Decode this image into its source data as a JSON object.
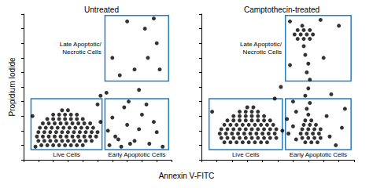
{
  "chart_data": {
    "type": "scatter",
    "xlabel": "Annexin V-FITC",
    "ylabel": "Propidium Iodide",
    "panels": [
      {
        "title": "Untreated",
        "xlim": [
          0,
          100
        ],
        "ylim": [
          0,
          100
        ],
        "xticks": [
          0,
          10,
          20,
          30,
          40,
          50,
          60,
          70,
          80,
          90,
          100
        ],
        "yticks": [
          0,
          10,
          20,
          30,
          40,
          50,
          60,
          70,
          80,
          90,
          100
        ],
        "tick_labels": false,
        "grid": false,
        "color": "#000000",
        "points": [
          [
            12,
            10
          ],
          [
            16,
            10
          ],
          [
            20,
            10
          ],
          [
            24,
            10
          ],
          [
            28,
            10
          ],
          [
            32,
            10
          ],
          [
            36,
            10
          ],
          [
            40,
            10
          ],
          [
            10,
            13
          ],
          [
            14,
            13
          ],
          [
            18,
            13
          ],
          [
            22,
            13
          ],
          [
            26,
            13
          ],
          [
            30,
            13
          ],
          [
            34,
            13
          ],
          [
            38,
            13
          ],
          [
            42,
            13
          ],
          [
            46,
            13
          ],
          [
            9,
            16
          ],
          [
            13,
            16
          ],
          [
            17,
            16
          ],
          [
            21,
            16
          ],
          [
            25,
            16
          ],
          [
            29,
            16
          ],
          [
            33,
            16
          ],
          [
            37,
            16
          ],
          [
            41,
            16
          ],
          [
            45,
            16
          ],
          [
            49,
            16
          ],
          [
            10,
            19
          ],
          [
            14,
            19
          ],
          [
            18,
            19
          ],
          [
            22,
            19
          ],
          [
            26,
            19
          ],
          [
            30,
            19
          ],
          [
            34,
            19
          ],
          [
            38,
            19
          ],
          [
            42,
            19
          ],
          [
            46,
            19
          ],
          [
            50,
            19
          ],
          [
            11,
            22
          ],
          [
            15,
            22
          ],
          [
            19,
            22
          ],
          [
            23,
            22
          ],
          [
            27,
            22
          ],
          [
            31,
            22
          ],
          [
            35,
            22
          ],
          [
            39,
            22
          ],
          [
            43,
            22
          ],
          [
            47,
            22
          ],
          [
            13,
            25
          ],
          [
            17,
            25
          ],
          [
            21,
            25
          ],
          [
            25,
            25
          ],
          [
            29,
            25
          ],
          [
            33,
            25
          ],
          [
            37,
            25
          ],
          [
            41,
            25
          ],
          [
            45,
            25
          ],
          [
            16,
            28
          ],
          [
            20,
            28
          ],
          [
            24,
            28
          ],
          [
            28,
            28
          ],
          [
            32,
            28
          ],
          [
            36,
            28
          ],
          [
            40,
            28
          ],
          [
            20,
            31
          ],
          [
            24,
            31
          ],
          [
            28,
            31
          ],
          [
            32,
            31
          ],
          [
            36,
            31
          ],
          [
            26,
            34
          ],
          [
            30,
            34
          ],
          [
            58,
            10
          ],
          [
            62,
            16
          ],
          [
            66,
            9
          ],
          [
            70,
            24
          ],
          [
            75,
            13
          ],
          [
            80,
            31
          ],
          [
            85,
            11
          ],
          [
            90,
            19
          ],
          [
            60,
            29
          ],
          [
            68,
            36
          ],
          [
            72,
            11
          ],
          [
            78,
            21
          ],
          [
            64,
            14
          ],
          [
            88,
            26
          ],
          [
            94,
            9
          ],
          [
            57,
            20
          ],
          [
            83,
            38
          ],
          [
            71,
            40
          ],
          [
            70,
            95
          ],
          [
            82,
            90
          ],
          [
            90,
            80
          ],
          [
            60,
            70
          ],
          [
            75,
            62
          ],
          [
            88,
            97
          ],
          [
            65,
            58
          ],
          [
            92,
            62
          ],
          [
            84,
            70
          ],
          [
            78,
            48
          ],
          [
            52,
            44
          ],
          [
            56,
            46
          ],
          [
            6,
            30
          ],
          [
            50,
            38
          ],
          [
            8,
            9
          ],
          [
            52,
            26
          ]
        ],
        "gates": [
          {
            "label": "Live Cells",
            "x": [
              5,
              53
            ],
            "y": [
              7,
              42
            ],
            "color": "#2b7bb9"
          },
          {
            "label": "Early Apoptotic Cells",
            "x": [
              55,
              98
            ],
            "y": [
              7,
              42
            ],
            "color": "#2b7bb9"
          },
          {
            "label": "Late Apoptotic/\nNecrotic Cells",
            "x": [
              55,
              98
            ],
            "y": [
              54,
              99
            ],
            "color": "#2b7bb9"
          }
        ]
      },
      {
        "title": "Camptothecin-treated",
        "xlim": [
          0,
          100
        ],
        "ylim": [
          0,
          100
        ],
        "xticks": [
          0,
          10,
          20,
          30,
          40,
          50,
          60,
          70,
          80,
          90,
          100
        ],
        "yticks": [
          0,
          10,
          20,
          30,
          40,
          50,
          60,
          70,
          80,
          90,
          100
        ],
        "tick_labels": false,
        "grid": false,
        "color": "#000000",
        "points": [
          [
            15,
            12
          ],
          [
            19,
            12
          ],
          [
            23,
            12
          ],
          [
            27,
            12
          ],
          [
            31,
            12
          ],
          [
            35,
            12
          ],
          [
            39,
            12
          ],
          [
            43,
            12
          ],
          [
            13,
            15
          ],
          [
            17,
            15
          ],
          [
            21,
            15
          ],
          [
            25,
            15
          ],
          [
            29,
            15
          ],
          [
            33,
            15
          ],
          [
            37,
            15
          ],
          [
            41,
            15
          ],
          [
            45,
            15
          ],
          [
            49,
            15
          ],
          [
            12,
            18
          ],
          [
            16,
            18
          ],
          [
            20,
            18
          ],
          [
            24,
            18
          ],
          [
            28,
            18
          ],
          [
            32,
            18
          ],
          [
            36,
            18
          ],
          [
            40,
            18
          ],
          [
            44,
            18
          ],
          [
            48,
            18
          ],
          [
            13,
            21
          ],
          [
            17,
            21
          ],
          [
            21,
            21
          ],
          [
            25,
            21
          ],
          [
            29,
            21
          ],
          [
            33,
            21
          ],
          [
            37,
            21
          ],
          [
            41,
            21
          ],
          [
            45,
            21
          ],
          [
            49,
            21
          ],
          [
            15,
            24
          ],
          [
            19,
            24
          ],
          [
            23,
            24
          ],
          [
            27,
            24
          ],
          [
            31,
            24
          ],
          [
            35,
            24
          ],
          [
            39,
            24
          ],
          [
            43,
            24
          ],
          [
            47,
            24
          ],
          [
            17,
            27
          ],
          [
            21,
            27
          ],
          [
            25,
            27
          ],
          [
            29,
            27
          ],
          [
            33,
            27
          ],
          [
            37,
            27
          ],
          [
            41,
            27
          ],
          [
            45,
            27
          ],
          [
            21,
            30
          ],
          [
            25,
            30
          ],
          [
            29,
            30
          ],
          [
            33,
            30
          ],
          [
            37,
            30
          ],
          [
            41,
            30
          ],
          [
            25,
            33
          ],
          [
            29,
            33
          ],
          [
            33,
            33
          ],
          [
            37,
            33
          ],
          [
            30,
            36
          ],
          [
            34,
            36
          ],
          [
            68,
            12
          ],
          [
            72,
            12
          ],
          [
            76,
            12
          ],
          [
            66,
            15
          ],
          [
            70,
            15
          ],
          [
            74,
            15
          ],
          [
            78,
            15
          ],
          [
            65,
            18
          ],
          [
            69,
            18
          ],
          [
            73,
            18
          ],
          [
            77,
            18
          ],
          [
            66,
            21
          ],
          [
            70,
            21
          ],
          [
            74,
            21
          ],
          [
            78,
            21
          ],
          [
            67,
            24
          ],
          [
            71,
            24
          ],
          [
            75,
            24
          ],
          [
            68,
            27
          ],
          [
            72,
            27
          ],
          [
            70,
            31
          ],
          [
            69,
            35
          ],
          [
            71,
            39
          ],
          [
            68,
            44
          ],
          [
            70,
            49
          ],
          [
            53,
            20
          ],
          [
            57,
            18
          ],
          [
            60,
            23
          ],
          [
            62,
            14
          ],
          [
            56,
            28
          ],
          [
            63,
            83
          ],
          [
            67,
            83
          ],
          [
            71,
            83
          ],
          [
            61,
            86
          ],
          [
            65,
            86
          ],
          [
            69,
            86
          ],
          [
            73,
            86
          ],
          [
            63,
            89
          ],
          [
            67,
            89
          ],
          [
            71,
            89
          ],
          [
            66,
            92
          ],
          [
            67,
            78
          ],
          [
            68,
            72
          ],
          [
            70,
            66
          ],
          [
            69,
            60
          ],
          [
            71,
            55
          ],
          [
            82,
            30
          ],
          [
            88,
            10
          ],
          [
            92,
            22
          ],
          [
            60,
            40
          ],
          [
            85,
            45
          ],
          [
            58,
            65
          ],
          [
            80,
            70
          ],
          [
            90,
            92
          ],
          [
            78,
            96
          ],
          [
            58,
            95
          ],
          [
            52,
            50
          ],
          [
            48,
            42
          ],
          [
            7,
            33
          ],
          [
            84,
            16
          ],
          [
            94,
            35
          ],
          [
            62,
            33
          ]
        ],
        "gates": [
          {
            "label": "Live Cells",
            "x": [
              5,
              53
            ],
            "y": [
              7,
              42
            ],
            "color": "#2b7bb9"
          },
          {
            "label": "Early Apoptotic Cells",
            "x": [
              55,
              98
            ],
            "y": [
              7,
              42
            ],
            "color": "#2b7bb9"
          },
          {
            "label": "Late Apoptotic/\nNecrotic Cells",
            "x": [
              55,
              98
            ],
            "y": [
              54,
              99
            ],
            "color": "#2b7bb9"
          }
        ]
      }
    ]
  }
}
